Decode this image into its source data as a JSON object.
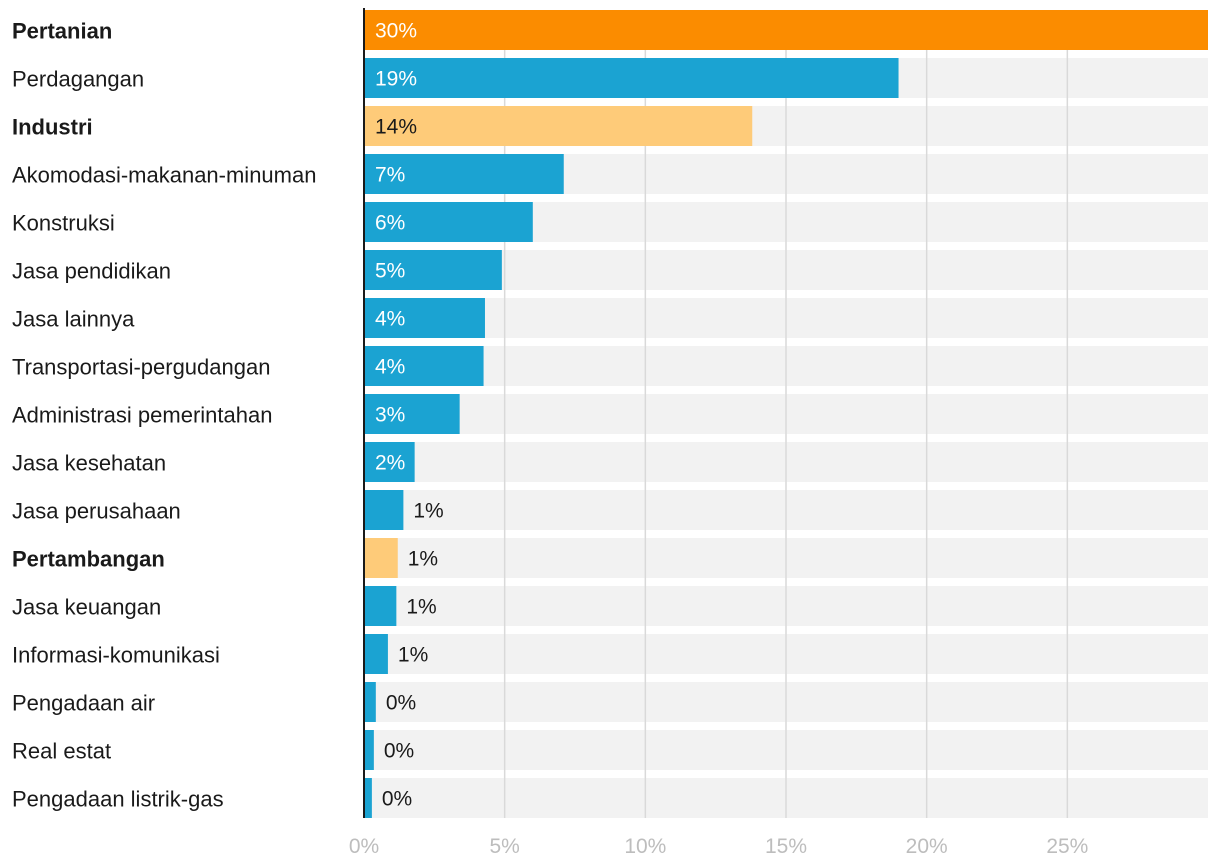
{
  "chart_data": {
    "type": "bar",
    "orientation": "horizontal",
    "title": "",
    "xlabel": "",
    "ylabel": "",
    "xlim": [
      0,
      30
    ],
    "grid": true,
    "value_suffix": "%",
    "x_ticks": [
      "0%",
      "5%",
      "10%",
      "15%",
      "20%",
      "25%"
    ],
    "x_tick_values": [
      0,
      5,
      10,
      15,
      20,
      25
    ],
    "colors": {
      "default": "#1ba3d2",
      "highlight": "#fb8c00",
      "secondary_highlight": "#fecb79",
      "track": "#f2f2f2",
      "grid": "#d9d9d9",
      "axis": "#1a1a1a",
      "label_dark": "#1a1a1a",
      "label_light": "#ffffff"
    },
    "bars": [
      {
        "category": "Pertanian",
        "value": 30.0,
        "label": "30%",
        "bold": true,
        "color": "highlight"
      },
      {
        "category": "Perdagangan",
        "value": 19.0,
        "label": "19%",
        "bold": false,
        "color": "default"
      },
      {
        "category": "Industri",
        "value": 13.8,
        "label": "14%",
        "bold": true,
        "color": "secondary_highlight"
      },
      {
        "category": "Akomodasi-makanan-minuman",
        "value": 7.1,
        "label": "7%",
        "bold": false,
        "color": "default"
      },
      {
        "category": "Konstruksi",
        "value": 6.0,
        "label": "6%",
        "bold": false,
        "color": "default"
      },
      {
        "category": "Jasa pendidikan",
        "value": 4.9,
        "label": "5%",
        "bold": false,
        "color": "default"
      },
      {
        "category": "Jasa lainnya",
        "value": 4.3,
        "label": "4%",
        "bold": false,
        "color": "default"
      },
      {
        "category": "Transportasi-pergudangan",
        "value": 4.25,
        "label": "4%",
        "bold": false,
        "color": "default"
      },
      {
        "category": "Administrasi pemerintahan",
        "value": 3.4,
        "label": "3%",
        "bold": false,
        "color": "default"
      },
      {
        "category": "Jasa kesehatan",
        "value": 1.8,
        "label": "2%",
        "bold": false,
        "color": "default"
      },
      {
        "category": "Jasa perusahaan",
        "value": 1.4,
        "label": "1%",
        "bold": false,
        "color": "default"
      },
      {
        "category": "Pertambangan",
        "value": 1.2,
        "label": "1%",
        "bold": true,
        "color": "secondary_highlight"
      },
      {
        "category": "Jasa keuangan",
        "value": 1.15,
        "label": "1%",
        "bold": false,
        "color": "default"
      },
      {
        "category": "Informasi-komunikasi",
        "value": 0.85,
        "label": "1%",
        "bold": false,
        "color": "default"
      },
      {
        "category": "Pengadaan air",
        "value": 0.42,
        "label": "0%",
        "bold": false,
        "color": "default"
      },
      {
        "category": "Real estat",
        "value": 0.35,
        "label": "0%",
        "bold": false,
        "color": "default"
      },
      {
        "category": "Pengadaan listrik-gas",
        "value": 0.28,
        "label": "0%",
        "bold": false,
        "color": "default"
      }
    ]
  }
}
